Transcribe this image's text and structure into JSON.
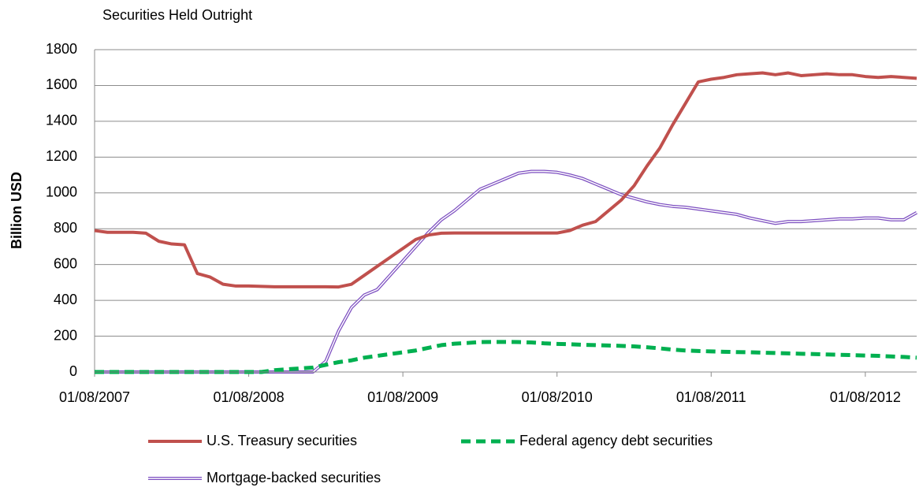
{
  "chart_data": {
    "type": "line",
    "title": "Securities Held Outright",
    "y_label": "Billion USD",
    "x": [
      "01/08/2007",
      "01/09/2007",
      "01/10/2007",
      "01/11/2007",
      "01/12/2007",
      "01/01/2008",
      "01/02/2008",
      "01/03/2008",
      "01/04/2008",
      "01/05/2008",
      "01/06/2008",
      "01/07/2008",
      "01/08/2008",
      "01/09/2008",
      "01/10/2008",
      "01/11/2008",
      "01/12/2008",
      "01/01/2009",
      "01/02/2009",
      "01/03/2009",
      "01/04/2009",
      "01/05/2009",
      "01/06/2009",
      "01/07/2009",
      "01/08/2009",
      "01/09/2009",
      "01/10/2009",
      "01/11/2009",
      "01/12/2009",
      "01/01/2010",
      "01/02/2010",
      "01/03/2010",
      "01/04/2010",
      "01/05/2010",
      "01/06/2010",
      "01/07/2010",
      "01/08/2010",
      "01/09/2010",
      "01/10/2010",
      "01/11/2010",
      "01/12/2010",
      "01/01/2011",
      "01/02/2011",
      "01/03/2011",
      "01/04/2011",
      "01/05/2011",
      "01/06/2011",
      "01/07/2011",
      "01/08/2011",
      "01/09/2011",
      "01/10/2011",
      "01/11/2011",
      "01/12/2011",
      "01/01/2012",
      "01/02/2012",
      "01/03/2012",
      "01/04/2012",
      "01/05/2012",
      "01/06/2012",
      "01/07/2012",
      "01/08/2012",
      "01/09/2012",
      "01/10/2012",
      "01/11/2012",
      "01/12/2012"
    ],
    "series": [
      {
        "name": "U.S. Treasury securities",
        "color": "#c0504d",
        "line_style": "solid",
        "values": [
          790,
          780,
          780,
          780,
          775,
          730,
          715,
          710,
          550,
          530,
          490,
          480,
          480,
          478,
          476,
          476,
          476,
          476,
          476,
          475,
          490,
          540,
          590,
          640,
          690,
          740,
          765,
          775,
          776,
          776,
          776,
          776,
          776,
          776,
          776,
          776,
          776,
          790,
          820,
          840,
          900,
          960,
          1040,
          1150,
          1250,
          1380,
          1500,
          1620,
          1635,
          1645,
          1660,
          1665,
          1670,
          1660,
          1670,
          1655,
          1660,
          1665,
          1660,
          1660,
          1650,
          1645,
          1650,
          1645,
          1640
        ]
      },
      {
        "name": "Federal agency debt securities",
        "color": "#00b050",
        "line_style": "dashed",
        "values": [
          0,
          0,
          0,
          0,
          0,
          0,
          0,
          0,
          0,
          0,
          0,
          0,
          0,
          0,
          10,
          15,
          20,
          25,
          40,
          55,
          65,
          80,
          90,
          100,
          110,
          120,
          135,
          150,
          158,
          162,
          167,
          168,
          168,
          167,
          165,
          160,
          157,
          155,
          152,
          150,
          148,
          146,
          143,
          138,
          132,
          125,
          120,
          117,
          115,
          113,
          111,
          110,
          108,
          106,
          104,
          102,
          100,
          98,
          96,
          94,
          92,
          90,
          87,
          84,
          80
        ]
      },
      {
        "name": "Mortgage-backed securities",
        "color": "#7d4fc0",
        "line_style": "double",
        "values": [
          0,
          0,
          0,
          0,
          0,
          0,
          0,
          0,
          0,
          0,
          0,
          0,
          0,
          0,
          0,
          0,
          0,
          0,
          60,
          230,
          360,
          430,
          460,
          540,
          620,
          700,
          780,
          850,
          900,
          960,
          1020,
          1050,
          1080,
          1110,
          1120,
          1120,
          1115,
          1100,
          1080,
          1050,
          1020,
          990,
          970,
          950,
          935,
          925,
          920,
          910,
          900,
          890,
          880,
          860,
          845,
          830,
          840,
          840,
          845,
          850,
          855,
          855,
          860,
          860,
          850,
          850,
          890
        ]
      }
    ],
    "xlim": [
      "01/08/2007",
      "01/12/2012"
    ],
    "xticks": [
      "01/08/2007",
      "01/08/2008",
      "01/08/2009",
      "01/08/2010",
      "01/08/2011",
      "01/08/2012"
    ],
    "ylim": [
      0,
      1800
    ],
    "yticks": [
      0,
      200,
      400,
      600,
      800,
      1000,
      1200,
      1400,
      1600,
      1800
    ],
    "grid": true
  }
}
